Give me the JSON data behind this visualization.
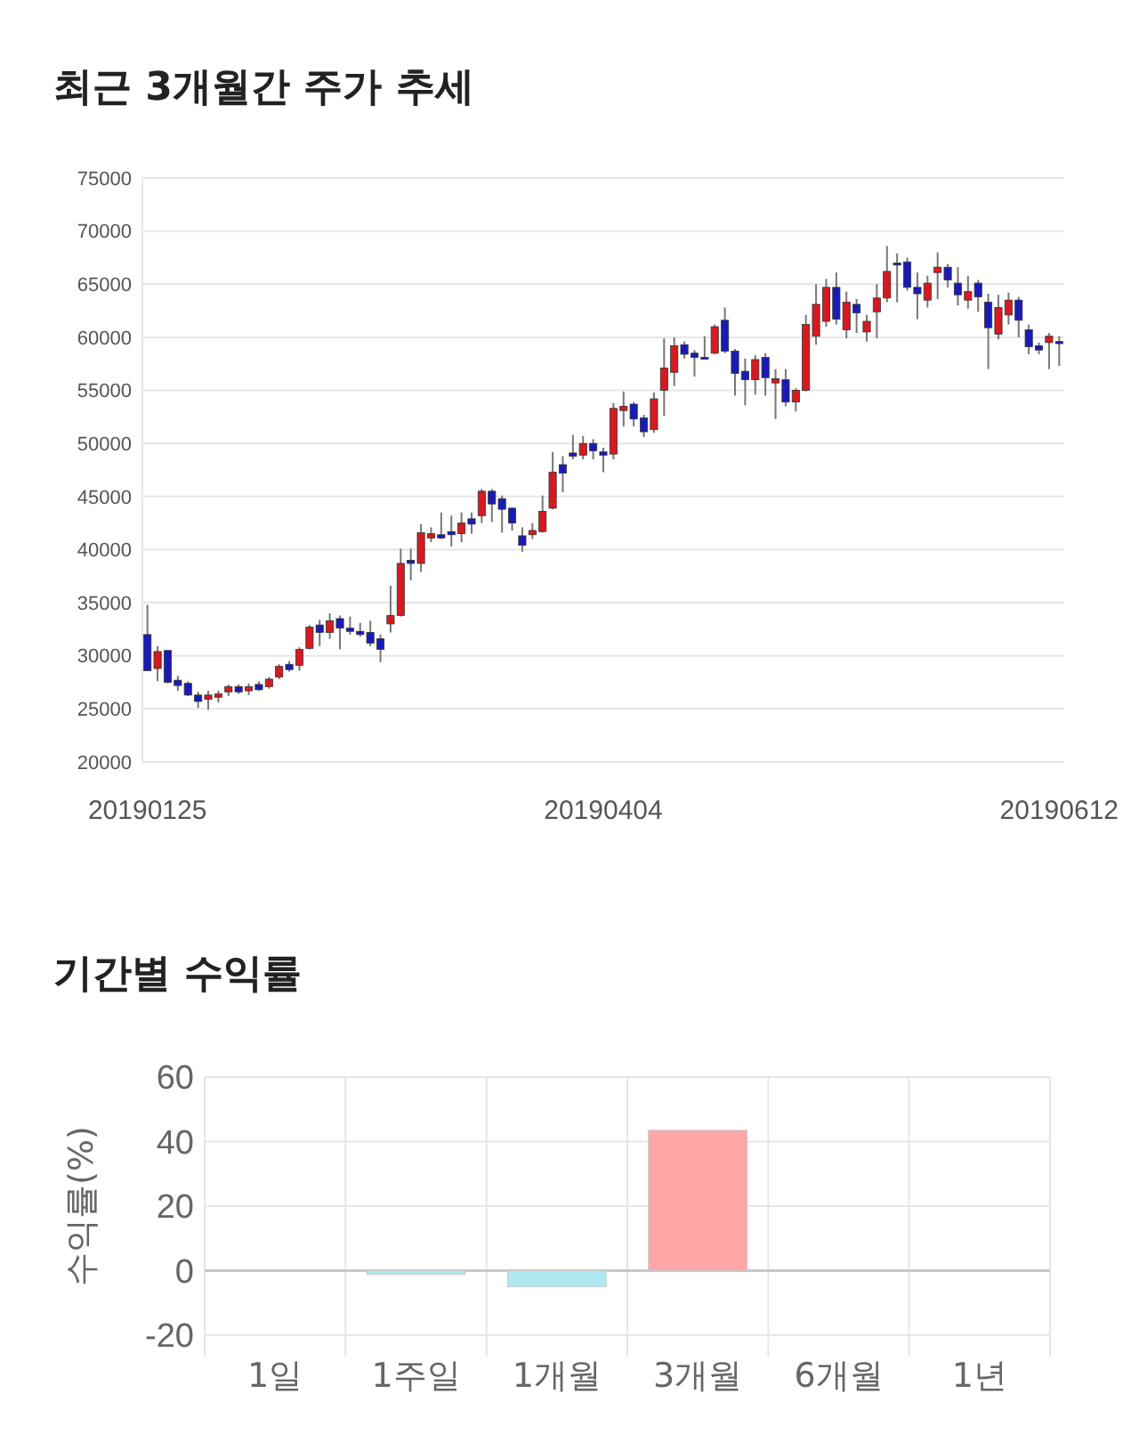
{
  "chart_data": [
    {
      "type": "candlestick",
      "title": "최근 3개월간 주가 추세",
      "categories": [
        "20190125",
        null,
        null,
        null,
        null,
        null,
        null,
        null,
        null,
        null,
        null,
        null,
        null,
        null,
        null,
        null,
        null,
        null,
        null,
        null,
        null,
        null,
        null,
        null,
        null,
        null,
        null,
        null,
        null,
        null,
        null,
        null,
        null,
        null,
        null,
        null,
        null,
        null,
        null,
        null,
        null,
        null,
        null,
        null,
        null,
        "20190404",
        null,
        null,
        null,
        null,
        null,
        null,
        null,
        null,
        null,
        null,
        null,
        null,
        null,
        null,
        null,
        null,
        null,
        null,
        null,
        null,
        null,
        null,
        null,
        null,
        null,
        null,
        null,
        null,
        null,
        null,
        null,
        null,
        null,
        null,
        null,
        null,
        null,
        null,
        null,
        null,
        null,
        null,
        null,
        null,
        "20190612"
      ],
      "ohlc": [
        [
          32000,
          34800,
          28600,
          28600
        ],
        [
          28800,
          30900,
          27600,
          30400
        ],
        [
          30500,
          30500,
          27400,
          27500
        ],
        [
          27700,
          28100,
          26700,
          27200
        ],
        [
          27400,
          27600,
          26200,
          26300
        ],
        [
          26300,
          26600,
          25100,
          25700
        ],
        [
          25900,
          26700,
          24900,
          26300
        ],
        [
          26100,
          26700,
          25600,
          26400
        ],
        [
          26600,
          27300,
          26200,
          27100
        ],
        [
          27100,
          27300,
          26400,
          26600
        ],
        [
          26700,
          27400,
          26300,
          27100
        ],
        [
          27300,
          27600,
          26700,
          26800
        ],
        [
          27100,
          28000,
          26900,
          27800
        ],
        [
          28000,
          29200,
          27800,
          29000
        ],
        [
          29200,
          29500,
          28500,
          28700
        ],
        [
          29100,
          30800,
          28600,
          30600
        ],
        [
          30700,
          32900,
          30600,
          32700
        ],
        [
          32900,
          33400,
          30900,
          32200
        ],
        [
          32200,
          34000,
          31600,
          33300
        ],
        [
          33500,
          33800,
          30600,
          32600
        ],
        [
          32600,
          33700,
          32000,
          32300
        ],
        [
          32300,
          33100,
          31800,
          32000
        ],
        [
          32200,
          33300,
          30900,
          31200
        ],
        [
          31600,
          32000,
          29400,
          30600
        ],
        [
          33000,
          36600,
          32200,
          33800
        ],
        [
          33800,
          40100,
          33700,
          38700
        ],
        [
          39000,
          40100,
          37100,
          38700
        ],
        [
          38700,
          42400,
          37900,
          41600
        ],
        [
          41100,
          42100,
          40700,
          41500
        ],
        [
          41400,
          43500,
          41000,
          41100
        ],
        [
          41700,
          43200,
          40300,
          41400
        ],
        [
          41500,
          43500,
          40700,
          42500
        ],
        [
          42900,
          43500,
          41500,
          42400
        ],
        [
          43200,
          45700,
          42500,
          45500
        ],
        [
          45500,
          45700,
          42600,
          44300
        ],
        [
          44800,
          45100,
          41600,
          43800
        ],
        [
          43900,
          44000,
          41800,
          42500
        ],
        [
          41300,
          42100,
          39800,
          40400
        ],
        [
          41400,
          42500,
          41000,
          41800
        ],
        [
          41700,
          45100,
          41600,
          43600
        ],
        [
          43900,
          49200,
          43800,
          47300
        ],
        [
          48000,
          48800,
          45400,
          47200
        ],
        [
          49100,
          50800,
          48500,
          48800
        ],
        [
          48900,
          50700,
          48500,
          50000
        ],
        [
          50000,
          50400,
          48500,
          49300
        ],
        [
          49200,
          49600,
          47300,
          48900
        ],
        [
          49000,
          53800,
          48500,
          53300
        ],
        [
          53100,
          54900,
          51600,
          53500
        ],
        [
          53700,
          53900,
          51600,
          52300
        ],
        [
          52400,
          52700,
          50600,
          51100
        ],
        [
          51300,
          54800,
          51000,
          54200
        ],
        [
          55000,
          59900,
          52600,
          57100
        ],
        [
          56700,
          60000,
          55400,
          59200
        ],
        [
          59300,
          59600,
          58000,
          58400
        ],
        [
          58500,
          58800,
          56300,
          58100
        ],
        [
          58100,
          60100,
          58000,
          58000
        ],
        [
          58500,
          61200,
          58400,
          61000
        ],
        [
          61600,
          62800,
          58500,
          58700
        ],
        [
          58700,
          58900,
          54500,
          56600
        ],
        [
          56800,
          58000,
          53600,
          56000
        ],
        [
          56000,
          58300,
          54600,
          57900
        ],
        [
          58100,
          58500,
          54500,
          56200
        ],
        [
          55700,
          57000,
          52300,
          56100
        ],
        [
          56000,
          57000,
          53500,
          53900
        ],
        [
          53900,
          55200,
          53000,
          55000
        ],
        [
          55000,
          62100,
          54900,
          61200
        ],
        [
          60100,
          65000,
          59300,
          63100
        ],
        [
          61500,
          65500,
          61000,
          64700
        ],
        [
          64700,
          66100,
          61200,
          61700
        ],
        [
          60700,
          64300,
          59900,
          63300
        ],
        [
          63100,
          63600,
          60400,
          62300
        ],
        [
          60500,
          62100,
          59600,
          61500
        ],
        [
          62400,
          65000,
          59900,
          63700
        ],
        [
          63700,
          68600,
          63300,
          66200
        ],
        [
          67000,
          67900,
          63300,
          66800
        ],
        [
          67100,
          67500,
          64400,
          64700
        ],
        [
          64700,
          66100,
          61700,
          64100
        ],
        [
          63500,
          65800,
          62800,
          65100
        ],
        [
          66100,
          68000,
          63600,
          66600
        ],
        [
          66600,
          66900,
          64700,
          65400
        ],
        [
          65100,
          66600,
          63000,
          64000
        ],
        [
          63500,
          65800,
          62700,
          64300
        ],
        [
          65100,
          65400,
          62400,
          63800
        ],
        [
          63300,
          64100,
          57000,
          60900
        ],
        [
          60300,
          64000,
          59800,
          62800
        ],
        [
          62100,
          64200,
          61200,
          63500
        ],
        [
          63500,
          63800,
          60000,
          61600
        ],
        [
          60700,
          61200,
          58400,
          59100
        ],
        [
          59200,
          59500,
          58400,
          58800
        ],
        [
          59500,
          60400,
          57000,
          60100
        ],
        [
          59600,
          60100,
          57300,
          59400
        ]
      ],
      "ylim": [
        20000,
        75000
      ],
      "yticks": [
        20000,
        25000,
        30000,
        35000,
        40000,
        45000,
        50000,
        55000,
        60000,
        65000,
        70000,
        75000
      ],
      "grid": "y"
    },
    {
      "type": "bar",
      "title": "기간별 수익률",
      "ylabel": "수익률(%)",
      "categories": [
        "1일",
        "1주일",
        "1개월",
        "3개월",
        "6개월",
        "1년"
      ],
      "values": [
        0,
        -1.2,
        -5,
        43.5,
        null,
        null
      ],
      "colors": [
        "#aee8f0",
        "#aee8f0",
        "#aee8f0",
        "#ffa6a6",
        null,
        null
      ],
      "ylim": [
        -20,
        60
      ],
      "yticks": [
        -20,
        0,
        20,
        40,
        60
      ],
      "grid": true
    }
  ]
}
